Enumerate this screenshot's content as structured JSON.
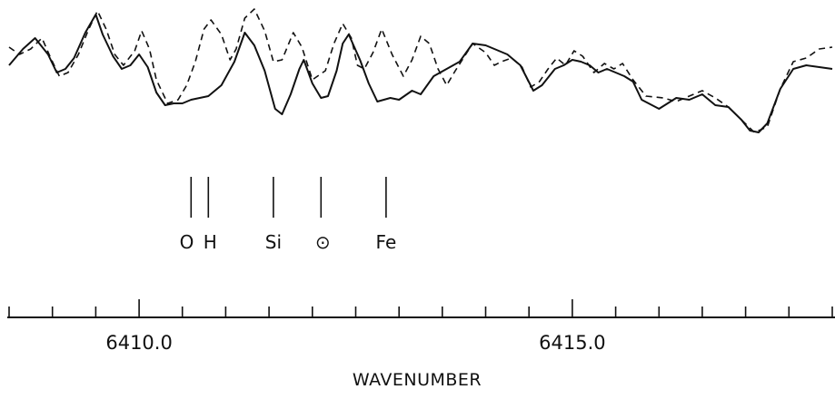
{
  "chart_data": {
    "type": "line",
    "title": "",
    "xlabel": "WAVENUMBER",
    "ylabel": "",
    "xlim": [
      6408.5,
      6418.0
    ],
    "ylim": [
      0.0,
      1.0
    ],
    "x_ticks": [
      6408.5,
      6409.0,
      6409.5,
      6410.0,
      6410.5,
      6411.0,
      6411.5,
      6412.0,
      6412.5,
      6413.0,
      6413.5,
      6414.0,
      6414.5,
      6415.0,
      6415.5,
      6416.0,
      6416.5,
      6417.0,
      6417.5,
      6418.0
    ],
    "x_tick_labels": [
      {
        "value": 6410.0,
        "text": "6410.0"
      },
      {
        "value": 6415.0,
        "text": "6415.0"
      }
    ],
    "grid": false,
    "legend": "none",
    "series": [
      {
        "style": "solid",
        "points": [
          [
            6408.5,
            0.68
          ],
          [
            6408.66,
            0.77
          ],
          [
            6408.8,
            0.83
          ],
          [
            6408.95,
            0.74
          ],
          [
            6409.05,
            0.64
          ],
          [
            6409.15,
            0.66
          ],
          [
            6409.25,
            0.72
          ],
          [
            6409.38,
            0.86
          ],
          [
            6409.5,
            0.96
          ],
          [
            6409.58,
            0.85
          ],
          [
            6409.7,
            0.73
          ],
          [
            6409.8,
            0.66
          ],
          [
            6409.9,
            0.68
          ],
          [
            6410.0,
            0.74
          ],
          [
            6410.1,
            0.67
          ],
          [
            6410.2,
            0.53
          ],
          [
            6410.3,
            0.46
          ],
          [
            6410.4,
            0.47
          ],
          [
            6410.5,
            0.47
          ],
          [
            6410.6,
            0.49
          ],
          [
            6410.7,
            0.5
          ],
          [
            6410.8,
            0.51
          ],
          [
            6410.95,
            0.57
          ],
          [
            6411.1,
            0.7
          ],
          [
            6411.22,
            0.86
          ],
          [
            6411.33,
            0.79
          ],
          [
            6411.45,
            0.65
          ],
          [
            6411.57,
            0.44
          ],
          [
            6411.65,
            0.41
          ],
          [
            6411.75,
            0.52
          ],
          [
            6411.85,
            0.66
          ],
          [
            6411.9,
            0.71
          ],
          [
            6412.0,
            0.58
          ],
          [
            6412.1,
            0.5
          ],
          [
            6412.18,
            0.51
          ],
          [
            6412.28,
            0.65
          ],
          [
            6412.35,
            0.8
          ],
          [
            6412.42,
            0.85
          ],
          [
            6412.55,
            0.71
          ],
          [
            6412.65,
            0.58
          ],
          [
            6412.75,
            0.48
          ],
          [
            6412.9,
            0.5
          ],
          [
            6413.0,
            0.49
          ],
          [
            6413.15,
            0.54
          ],
          [
            6413.25,
            0.52
          ],
          [
            6413.4,
            0.62
          ],
          [
            6413.55,
            0.66
          ],
          [
            6413.7,
            0.7
          ],
          [
            6413.85,
            0.8
          ],
          [
            6414.0,
            0.79
          ],
          [
            6414.1,
            0.77
          ],
          [
            6414.25,
            0.74
          ],
          [
            6414.4,
            0.68
          ],
          [
            6414.55,
            0.54
          ],
          [
            6414.65,
            0.57
          ],
          [
            6414.8,
            0.66
          ],
          [
            6414.9,
            0.68
          ],
          [
            6415.0,
            0.71
          ],
          [
            6415.1,
            0.7
          ],
          [
            6415.2,
            0.68
          ],
          [
            6415.3,
            0.64
          ],
          [
            6415.4,
            0.66
          ],
          [
            6415.5,
            0.64
          ],
          [
            6415.6,
            0.62
          ],
          [
            6415.7,
            0.59
          ],
          [
            6415.8,
            0.49
          ],
          [
            6416.0,
            0.44
          ],
          [
            6416.2,
            0.5
          ],
          [
            6416.35,
            0.49
          ],
          [
            6416.5,
            0.52
          ],
          [
            6416.65,
            0.46
          ],
          [
            6416.8,
            0.45
          ],
          [
            6416.95,
            0.38
          ],
          [
            6417.05,
            0.32
          ],
          [
            6417.15,
            0.31
          ],
          [
            6417.25,
            0.36
          ],
          [
            6417.4,
            0.55
          ],
          [
            6417.55,
            0.66
          ],
          [
            6417.7,
            0.68
          ],
          [
            6417.85,
            0.67
          ],
          [
            6418.0,
            0.66
          ]
        ]
      },
      {
        "style": "dashed",
        "points": [
          [
            6408.5,
            0.78
          ],
          [
            6408.62,
            0.74
          ],
          [
            6408.75,
            0.77
          ],
          [
            6408.88,
            0.83
          ],
          [
            6408.98,
            0.72
          ],
          [
            6409.08,
            0.62
          ],
          [
            6409.18,
            0.64
          ],
          [
            6409.3,
            0.74
          ],
          [
            6409.42,
            0.88
          ],
          [
            6409.52,
            0.98
          ],
          [
            6409.62,
            0.88
          ],
          [
            6409.72,
            0.74
          ],
          [
            6409.82,
            0.68
          ],
          [
            6409.95,
            0.76
          ],
          [
            6410.03,
            0.87
          ],
          [
            6410.12,
            0.77
          ],
          [
            6410.2,
            0.6
          ],
          [
            6410.33,
            0.47
          ],
          [
            6410.45,
            0.49
          ],
          [
            6410.55,
            0.57
          ],
          [
            6410.65,
            0.7
          ],
          [
            6410.75,
            0.88
          ],
          [
            6410.83,
            0.93
          ],
          [
            6410.95,
            0.85
          ],
          [
            6411.05,
            0.71
          ],
          [
            6411.12,
            0.77
          ],
          [
            6411.22,
            0.94
          ],
          [
            6411.33,
            0.99
          ],
          [
            6411.45,
            0.87
          ],
          [
            6411.55,
            0.7
          ],
          [
            6411.65,
            0.71
          ],
          [
            6411.78,
            0.86
          ],
          [
            6411.88,
            0.78
          ],
          [
            6412.0,
            0.6
          ],
          [
            6412.15,
            0.65
          ],
          [
            6412.25,
            0.8
          ],
          [
            6412.35,
            0.91
          ],
          [
            6412.45,
            0.83
          ],
          [
            6412.52,
            0.68
          ],
          [
            6412.6,
            0.66
          ],
          [
            6412.7,
            0.75
          ],
          [
            6412.8,
            0.88
          ],
          [
            6412.92,
            0.74
          ],
          [
            6413.05,
            0.62
          ],
          [
            6413.15,
            0.71
          ],
          [
            6413.25,
            0.84
          ],
          [
            6413.35,
            0.8
          ],
          [
            6413.45,
            0.66
          ],
          [
            6413.55,
            0.57
          ],
          [
            6413.65,
            0.65
          ],
          [
            6413.85,
            0.8
          ],
          [
            6414.0,
            0.75
          ],
          [
            6414.1,
            0.68
          ],
          [
            6414.18,
            0.7
          ],
          [
            6414.3,
            0.72
          ],
          [
            6414.42,
            0.67
          ],
          [
            6414.52,
            0.56
          ],
          [
            6414.62,
            0.59
          ],
          [
            6414.72,
            0.66
          ],
          [
            6414.82,
            0.72
          ],
          [
            6414.92,
            0.68
          ],
          [
            6415.02,
            0.76
          ],
          [
            6415.12,
            0.73
          ],
          [
            6415.25,
            0.64
          ],
          [
            6415.37,
            0.69
          ],
          [
            6415.48,
            0.66
          ],
          [
            6415.58,
            0.69
          ],
          [
            6415.7,
            0.6
          ],
          [
            6415.85,
            0.51
          ],
          [
            6416.05,
            0.5
          ],
          [
            6416.2,
            0.48
          ],
          [
            6416.35,
            0.51
          ],
          [
            6416.5,
            0.54
          ],
          [
            6416.65,
            0.5
          ],
          [
            6416.8,
            0.45
          ],
          [
            6416.95,
            0.38
          ],
          [
            6417.1,
            0.31
          ],
          [
            6417.25,
            0.34
          ],
          [
            6417.4,
            0.55
          ],
          [
            6417.55,
            0.7
          ],
          [
            6417.7,
            0.72
          ],
          [
            6417.85,
            0.77
          ],
          [
            6418.0,
            0.78
          ]
        ]
      }
    ],
    "line_markers": [
      {
        "x": 6410.6,
        "group": "OH"
      },
      {
        "x": 6410.8,
        "group": "OH"
      },
      {
        "x": 6411.55,
        "group": "Si"
      },
      {
        "x": 6412.1,
        "group": "sun"
      },
      {
        "x": 6412.85,
        "group": "Fe"
      }
    ],
    "annotations": [
      {
        "text": "O",
        "x": 6410.55
      },
      {
        "text": "H",
        "x": 6410.82
      },
      {
        "text": "Si",
        "x": 6411.55
      },
      {
        "text": "⊙",
        "x": 6412.12
      },
      {
        "text": "Fe",
        "x": 6412.85
      }
    ]
  }
}
